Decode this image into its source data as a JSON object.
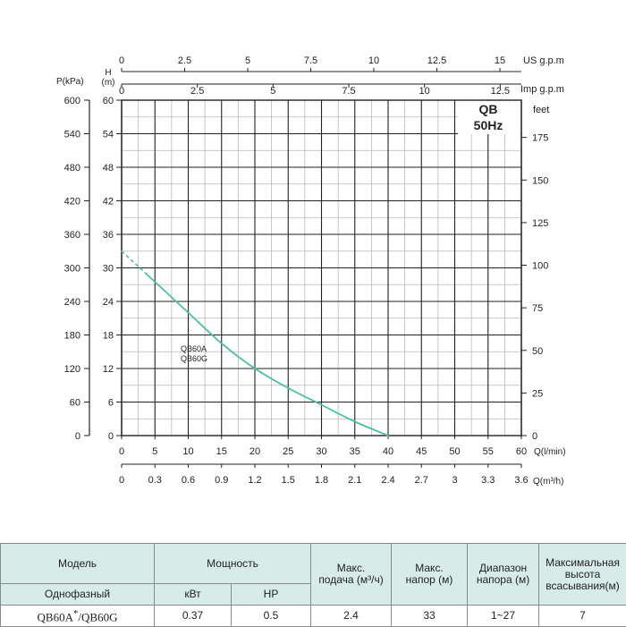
{
  "chart_data": {
    "type": "line",
    "badge": {
      "line1": "QB",
      "line2": "50Hz"
    },
    "left_axes": {
      "kpa_label": "P(kPa)",
      "h_label_line1": "H",
      "h_label_line2": "(m)",
      "kpa_ticks": [
        "600",
        "540",
        "480",
        "420",
        "360",
        "300",
        "240",
        "180",
        "120",
        "60",
        "0"
      ],
      "m_ticks": [
        "60",
        "54",
        "48",
        "42",
        "36",
        "30",
        "24",
        "18",
        "12",
        "6",
        "0"
      ],
      "m_range": [
        0,
        60
      ]
    },
    "right_axis": {
      "label": "feet",
      "ticks": [
        {
          "value": 0,
          "label": "0"
        },
        {
          "value": 25,
          "label": "25"
        },
        {
          "value": 50,
          "label": "50"
        },
        {
          "value": 75,
          "label": "75"
        },
        {
          "value": 100,
          "label": "100"
        },
        {
          "value": 125,
          "label": "125"
        },
        {
          "value": 150,
          "label": "150"
        },
        {
          "value": 175,
          "label": "175"
        }
      ]
    },
    "top_axes": [
      {
        "label": "US  g.p.m",
        "ticks": [
          {
            "value": 0,
            "label": "0"
          },
          {
            "value": 2.5,
            "label": "2.5"
          },
          {
            "value": 5,
            "label": "5"
          },
          {
            "value": 7.5,
            "label": "7.5"
          },
          {
            "value": 10,
            "label": "10"
          },
          {
            "value": 12.5,
            "label": "12.5"
          },
          {
            "value": 15,
            "label": "15"
          }
        ]
      },
      {
        "label": "Imp g.p.m",
        "ticks": [
          {
            "value": 0,
            "label": "0"
          },
          {
            "value": 2.5,
            "label": "2.5"
          },
          {
            "value": 5,
            "label": "5"
          },
          {
            "value": 7.5,
            "label": "7.5"
          },
          {
            "value": 10,
            "label": "10"
          },
          {
            "value": 12.5,
            "label": "12.5"
          }
        ]
      }
    ],
    "bottom_axes": [
      {
        "label": "Q(l/min)",
        "ticks": [
          "0",
          "5",
          "10",
          "15",
          "20",
          "25",
          "30",
          "35",
          "40",
          "45",
          "50",
          "55",
          "60"
        ],
        "range": [
          0,
          60
        ]
      },
      {
        "label": "Q(m³/h)",
        "ticks": [
          "0",
          "0.3",
          "0.6",
          "0.9",
          "1.2",
          "1.5",
          "1.8",
          "2.1",
          "2.4",
          "2.7",
          "3",
          "3.3",
          "3.6"
        ]
      }
    ],
    "series": [
      {
        "name": "QB60A\nQB60G",
        "label_line1": "QB60A",
        "label_line2": "QB60G",
        "color": "#4cbfa4",
        "x": [
          0,
          5,
          10,
          15,
          20,
          25,
          30,
          35,
          40
        ],
        "y": [
          33,
          27.5,
          22,
          16.5,
          12,
          8.5,
          5.5,
          2.5,
          0
        ],
        "dashed_until_x": 3.5
      }
    ],
    "grid": true
  },
  "spec_table": {
    "headers": {
      "model": "Модель",
      "power": "Мощность",
      "max_flow": "Макс.\nподача (м³/ч)",
      "max_head": "Макс.\nнапор (м)",
      "head_range": "Диапазон\nнапора (м)",
      "suction": "Максимальная\nвысота\nвсасывания(м)"
    },
    "subheaders": {
      "phase": "Однофазный",
      "kw": "кВт",
      "hp": "HP"
    },
    "row": {
      "model": "QB60A",
      "model_star": "*",
      "model_alt": "/QB60G",
      "kw": "0.37",
      "hp": "0.5",
      "max_flow": "2.4",
      "max_head": "33",
      "head_range": "1~27",
      "suction": "7"
    }
  }
}
